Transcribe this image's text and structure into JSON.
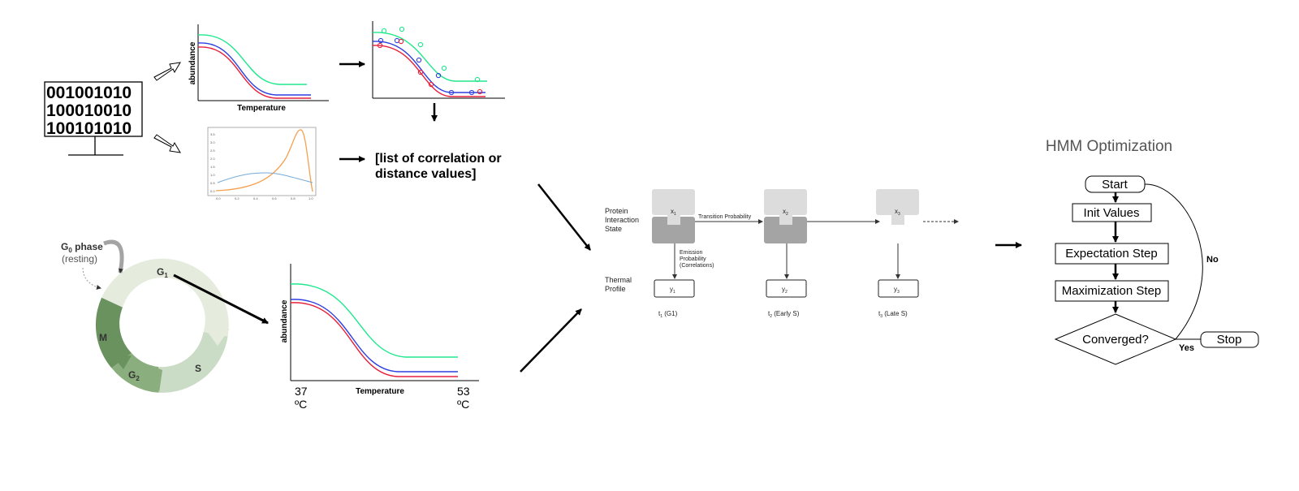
{
  "computer": {
    "binary_lines": [
      "001001010",
      "100010010",
      "100101010"
    ]
  },
  "top_curves_plot": {
    "ylabel": "abundance",
    "xlabel": "Temperature"
  },
  "correlation_result": {
    "line1": "[list of correlation or",
    "line2": "distance values]"
  },
  "small_dist_plot": {
    "ytick_labels": [
      "0.0",
      "0.5",
      "1.0",
      "1.5",
      "2.0",
      "2.5",
      "3.0",
      "3.5"
    ],
    "xtick_labels": [
      "0.0",
      "0.2",
      "0.4",
      "0.6",
      "0.8",
      "1.0"
    ]
  },
  "cell_cycle": {
    "g0_label": "G",
    "g0_sub": "0",
    "g0_word": " phase",
    "g0_note": "(resting)",
    "g1_label": "G",
    "g1_sub": "1",
    "m_label": "M",
    "g2_label": "G",
    "g2_sub": "2",
    "s_label": "S"
  },
  "bottom_curves_plot": {
    "ylabel": "abundance",
    "xlabel": "Temperature",
    "x_start_value": "37",
    "x_start_unit": "ºC",
    "x_end_value": "53",
    "x_end_unit": "ºC"
  },
  "hmm_model": {
    "row1_label": [
      "Protein",
      "Interaction",
      "State"
    ],
    "row2_label": [
      "Thermal",
      "Profile"
    ],
    "transition_label": "Transition Probability",
    "emission_label": [
      "Emission",
      "Probability",
      "(Correlations)"
    ],
    "states": [
      "x",
      "x",
      "x"
    ],
    "state_subs": [
      "1",
      "2",
      "3"
    ],
    "observations": [
      "y",
      "y",
      "y"
    ],
    "obs_subs": [
      "1",
      "2",
      "3"
    ],
    "times": [
      "t",
      "t",
      "t"
    ],
    "time_subs": [
      "1",
      "2",
      "3"
    ],
    "time_notes": [
      " (G1)",
      " (Early S)",
      " (Late S)"
    ]
  },
  "hmm_optimization": {
    "title": "HMM Optimization",
    "start": "Start",
    "init": "Init Values",
    "expectation": "Expectation Step",
    "maximization": "Maximization Step",
    "converged": "Converged?",
    "stop": "Stop",
    "no": "No",
    "yes": "Yes"
  },
  "colors": {
    "green": "#1fe88c",
    "blue": "#2f3fe0",
    "red": "#e8203c",
    "orange": "#f5a04f",
    "lightblue": "#7aaad4",
    "state_light": "#dcdcdc",
    "state_dark": "#a4a4a4",
    "cycle_g1": "#e6ecdd",
    "cycle_s": "#cbdcc6",
    "cycle_g2": "#8aae7e",
    "cycle_m": "#6a925f"
  }
}
